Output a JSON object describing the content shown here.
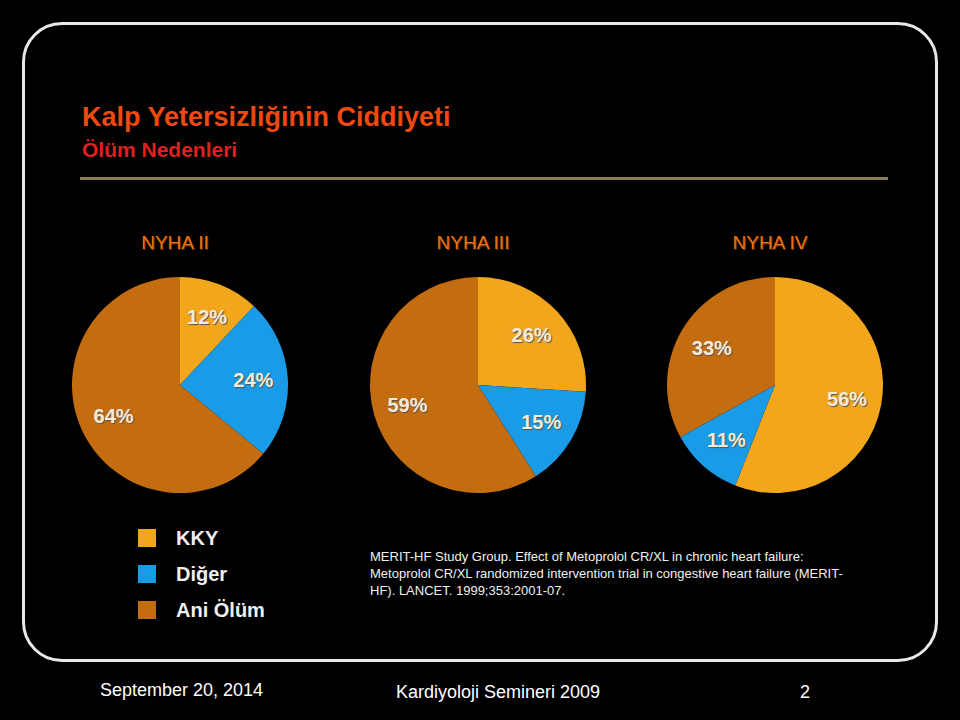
{
  "title": "Kalp Yetersizliğinin Ciddiyeti",
  "subtitle": "Ölüm Nedenleri",
  "chart_data": [
    {
      "type": "pie",
      "title": "NYHA II",
      "categories": [
        "KKY",
        "Diğer",
        "Ani Ölüm"
      ],
      "values": [
        12,
        24,
        64
      ],
      "value_labels": [
        "12%",
        "24%",
        "64%"
      ],
      "colors": [
        "#f2a61c",
        "#1a9be8",
        "#c46c10"
      ],
      "data_labels": true
    },
    {
      "type": "pie",
      "title": "NYHA III",
      "categories": [
        "KKY",
        "Diğer",
        "Ani Ölüm"
      ],
      "values": [
        26,
        15,
        59
      ],
      "value_labels": [
        "26%",
        "15%",
        "59%"
      ],
      "colors": [
        "#f2a61c",
        "#1a9be8",
        "#c46c10"
      ],
      "data_labels": true
    },
    {
      "type": "pie",
      "title": "NYHA IV",
      "categories": [
        "KKY",
        "Diğer",
        "Ani Ölüm"
      ],
      "values": [
        56,
        11,
        33
      ],
      "value_labels": [
        "56%",
        "11%",
        "33%"
      ],
      "colors": [
        "#f2a61c",
        "#1a9be8",
        "#c46c10"
      ],
      "data_labels": true
    }
  ],
  "source": "MERIT-HF Study Group.  Effect of Metoprolol CR/XL in chronic heart failure: Metoprolol CR/XL randomized intervention trial in congestive heart failure (MERIT-HF).  LANCET.  1999;353:2001-07.",
  "footer": {
    "date": "September 20, 2014",
    "event": "Kardiyoloji Semineri 2009",
    "page": "2"
  }
}
